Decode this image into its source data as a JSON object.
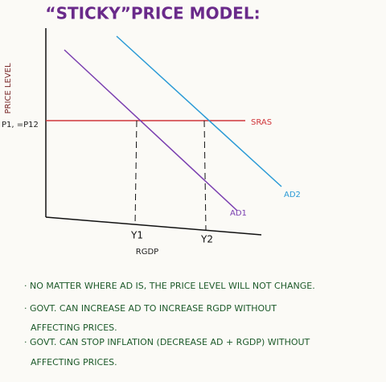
{
  "title": "“STICKY”PRICE MODEL:",
  "y_axis_label": "PRICE LEVEL",
  "x_axis_label": "RGDP",
  "price_label": "P1, =P12",
  "curves": {
    "sras": "SRAS",
    "ad1": "AD1",
    "ad2": "AD2"
  },
  "output_labels": [
    "Y1",
    "Y2"
  ],
  "notes": [
    [
      "· NO MATTER WHERE AD IS, THE PRICE LEVEL WILL NOT CHANGE."
    ],
    [
      "· GOVT. CAN INCREASE AD TO INCREASE RGDP WITHOUT",
      "AFFECTING PRICES."
    ],
    [
      "· GOVT. CAN STOP INFLATION (DECREASE AD + RGDP) WITHOUT",
      "AFFECTING PRICES."
    ]
  ]
}
